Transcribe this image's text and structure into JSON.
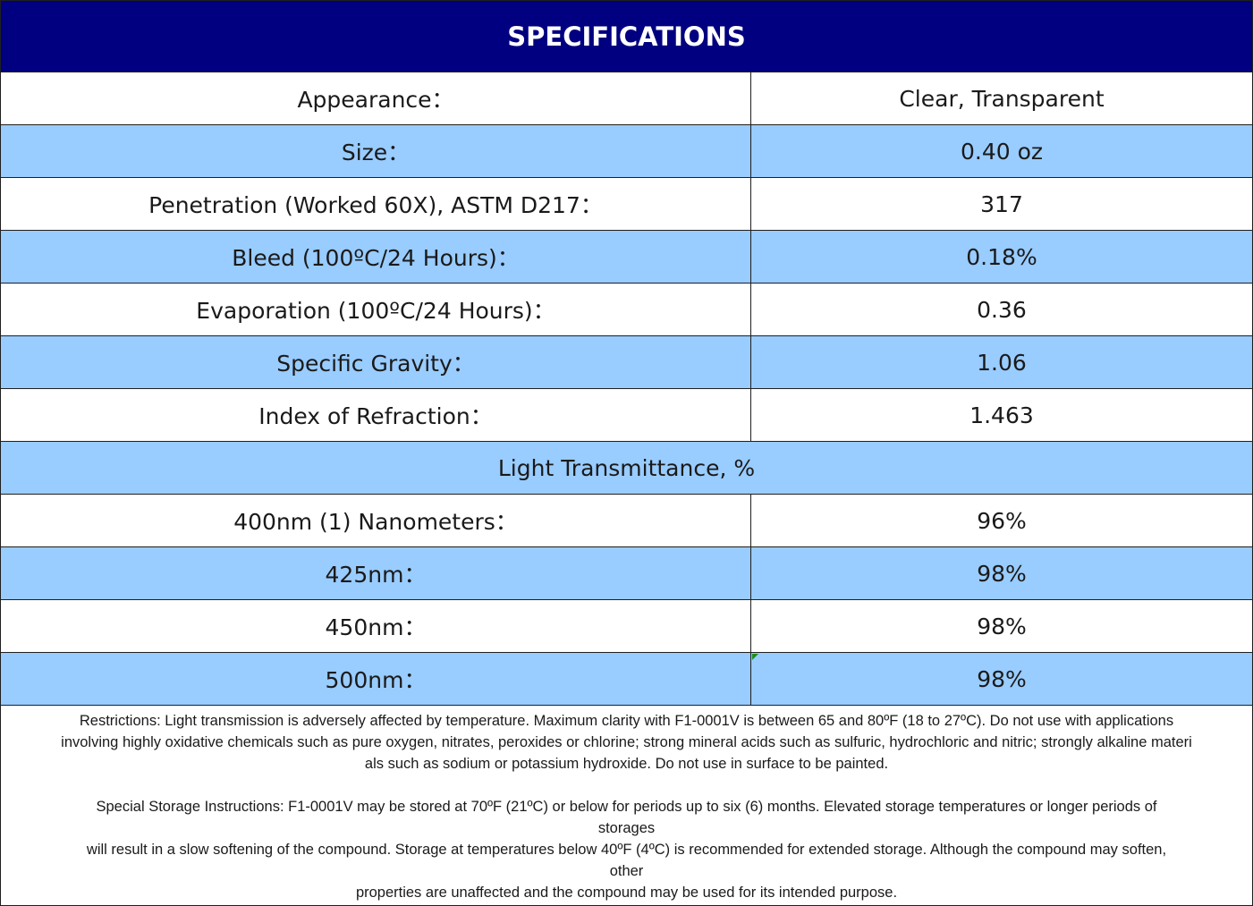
{
  "header": {
    "title": "SPECIFICATIONS"
  },
  "rows": [
    {
      "label": "Appearance：",
      "value": "Clear, Transparent"
    },
    {
      "label": "Size：",
      "value": "0.40 oz"
    },
    {
      "label": "Penetration (Worked 60X), ASTM D217：",
      "value": "317"
    },
    {
      "label": "Bleed (100ºC/24 Hours)：",
      "value": "0.18%"
    },
    {
      "label": "Evaporation (100ºC/24 Hours)：",
      "value": "0.36"
    },
    {
      "label": "Specific Gravity：",
      "value": "1.06"
    },
    {
      "label": "Index of Refraction：",
      "value": "1.463"
    }
  ],
  "section": {
    "title": "Light Transmittance, %"
  },
  "transmittance_rows": [
    {
      "label": "400nm (1) Nanometers：",
      "value": "96%"
    },
    {
      "label": "425nm：",
      "value": "98%"
    },
    {
      "label": "450nm：",
      "value": "98%"
    },
    {
      "label": "500nm：",
      "value": "98%"
    }
  ],
  "notes": {
    "restrictions": [
      "Restrictions: Light transmission is adversely affected by temperature. Maximum clarity with F1-0001V is between 65 and 80ºF (18 to 27ºC). Do not use with applications",
      "involving highly oxidative chemicals such as pure oxygen, nitrates, peroxides or chlorine; strong mineral acids such as sulfuric, hydrochloric and nitric; strongly alkaline materi",
      "als such as sodium or potassium hydroxide. Do not use in surface to be painted."
    ],
    "storage": [
      "Special Storage Instructions: F1-0001V may be stored at 70ºF (21ºC) or below for periods up to six (6) months. Elevated storage temperatures or longer periods of",
      "storages",
      "will result in a slow softening of the compound. Storage at temperatures below 40ºF (4ºC) is recommended for extended storage. Although the compound may soften,",
      "other",
      "properties are unaffected and the compound may be used for its intended purpose."
    ]
  }
}
